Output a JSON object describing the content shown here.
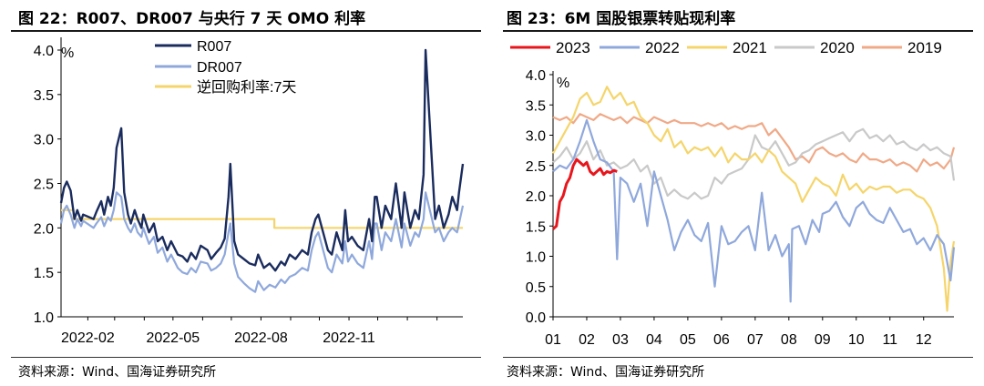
{
  "chart_data": [
    {
      "type": "line",
      "title": "图 22：R007、DR007 与央行 7 天 OMO 利率",
      "ylabel": "%",
      "ylim": [
        1.0,
        4.0
      ],
      "yticks": [
        "1.0",
        "1.5",
        "2.0",
        "2.5",
        "3.0",
        "3.5",
        "4.0"
      ],
      "xlim": [
        "2022-01-04",
        "2023-02-28"
      ],
      "xticks": [
        "2022-02",
        "2022-05",
        "2022-08",
        "2022-11"
      ],
      "legend": "top-center",
      "source": "资料来源：Wind、国海证券研究所",
      "series": [
        {
          "name": "R007",
          "color": "#1a2c5e",
          "x": [
            "2022-01-04",
            "2022-01-07",
            "2022-01-10",
            "2022-01-14",
            "2022-01-18",
            "2022-01-21",
            "2022-01-25",
            "2022-01-27",
            "2022-02-07",
            "2022-02-10",
            "2022-02-15",
            "2022-02-18",
            "2022-02-22",
            "2022-02-25",
            "2022-02-28",
            "2022-03-03",
            "2022-03-08",
            "2022-03-11",
            "2022-03-15",
            "2022-03-18",
            "2022-03-22",
            "2022-03-25",
            "2022-03-29",
            "2022-03-31",
            "2022-04-06",
            "2022-04-11",
            "2022-04-15",
            "2022-04-20",
            "2022-04-25",
            "2022-04-29",
            "2022-05-06",
            "2022-05-11",
            "2022-05-16",
            "2022-05-20",
            "2022-05-25",
            "2022-05-30",
            "2022-06-06",
            "2022-06-10",
            "2022-06-15",
            "2022-06-20",
            "2022-06-24",
            "2022-06-28",
            "2022-06-30",
            "2022-07-04",
            "2022-07-08",
            "2022-07-14",
            "2022-07-20",
            "2022-07-26",
            "2022-07-29",
            "2022-08-04",
            "2022-08-10",
            "2022-08-16",
            "2022-08-22",
            "2022-08-26",
            "2022-08-31",
            "2022-09-06",
            "2022-09-13",
            "2022-09-19",
            "2022-09-23",
            "2022-09-27",
            "2022-09-30",
            "2022-10-10",
            "2022-10-14",
            "2022-10-19",
            "2022-10-25",
            "2022-10-28",
            "2022-10-31",
            "2022-11-04",
            "2022-11-10",
            "2022-11-16",
            "2022-11-22",
            "2022-11-25",
            "2022-11-28",
            "2022-11-30",
            "2022-12-05",
            "2022-12-09",
            "2022-12-15",
            "2022-12-20",
            "2022-12-26",
            "2022-12-29",
            "2023-01-04",
            "2023-01-09",
            "2023-01-13",
            "2023-01-18",
            "2023-01-20",
            "2023-01-30",
            "2023-02-03",
            "2023-02-08",
            "2023-02-13",
            "2023-02-17",
            "2023-02-22",
            "2023-02-24",
            "2023-02-28"
          ],
          "y": [
            2.28,
            2.45,
            2.52,
            2.42,
            2.1,
            2.2,
            2.08,
            2.15,
            2.1,
            2.18,
            2.3,
            2.15,
            2.35,
            2.25,
            2.45,
            2.9,
            3.12,
            2.4,
            2.15,
            2.05,
            2.2,
            2.1,
            2.0,
            2.15,
            1.95,
            2.05,
            1.85,
            1.9,
            1.75,
            1.85,
            1.7,
            1.68,
            1.62,
            1.72,
            1.65,
            1.8,
            1.75,
            1.65,
            1.72,
            1.78,
            1.88,
            2.35,
            2.72,
            1.85,
            1.7,
            1.65,
            1.6,
            1.58,
            1.7,
            1.55,
            1.6,
            1.52,
            1.62,
            1.58,
            1.7,
            1.65,
            1.75,
            1.7,
            1.95,
            2.1,
            2.15,
            1.75,
            1.7,
            1.95,
            1.75,
            2.2,
            1.85,
            1.9,
            1.8,
            1.75,
            2.1,
            1.85,
            2.35,
            2.35,
            2.0,
            2.25,
            2.1,
            2.5,
            2.0,
            2.4,
            2.0,
            2.2,
            2.1,
            2.6,
            4.0,
            2.1,
            2.25,
            2.0,
            2.15,
            2.35,
            2.2,
            2.4,
            2.72
          ]
        },
        {
          "name": "DR007",
          "color": "#8fa8dc",
          "x": [
            "2022-01-04",
            "2022-01-07",
            "2022-01-10",
            "2022-01-14",
            "2022-01-18",
            "2022-01-21",
            "2022-01-25",
            "2022-01-27",
            "2022-02-07",
            "2022-02-10",
            "2022-02-15",
            "2022-02-18",
            "2022-02-22",
            "2022-02-25",
            "2022-02-28",
            "2022-03-03",
            "2022-03-08",
            "2022-03-11",
            "2022-03-15",
            "2022-03-18",
            "2022-03-22",
            "2022-03-25",
            "2022-03-29",
            "2022-03-31",
            "2022-04-06",
            "2022-04-11",
            "2022-04-15",
            "2022-04-20",
            "2022-04-25",
            "2022-04-29",
            "2022-05-06",
            "2022-05-11",
            "2022-05-16",
            "2022-05-20",
            "2022-05-25",
            "2022-05-30",
            "2022-06-06",
            "2022-06-10",
            "2022-06-15",
            "2022-06-20",
            "2022-06-24",
            "2022-06-28",
            "2022-06-30",
            "2022-07-04",
            "2022-07-08",
            "2022-07-14",
            "2022-07-20",
            "2022-07-26",
            "2022-07-29",
            "2022-08-04",
            "2022-08-10",
            "2022-08-16",
            "2022-08-22",
            "2022-08-26",
            "2022-08-31",
            "2022-09-06",
            "2022-09-13",
            "2022-09-19",
            "2022-09-23",
            "2022-09-27",
            "2022-09-30",
            "2022-10-10",
            "2022-10-14",
            "2022-10-19",
            "2022-10-25",
            "2022-10-28",
            "2022-10-31",
            "2022-11-04",
            "2022-11-10",
            "2022-11-16",
            "2022-11-22",
            "2022-11-25",
            "2022-11-28",
            "2022-11-30",
            "2022-12-05",
            "2022-12-09",
            "2022-12-15",
            "2022-12-20",
            "2022-12-26",
            "2022-12-29",
            "2023-01-04",
            "2023-01-09",
            "2023-01-13",
            "2023-01-18",
            "2023-01-20",
            "2023-01-30",
            "2023-02-03",
            "2023-02-08",
            "2023-02-13",
            "2023-02-17",
            "2023-02-22",
            "2023-02-24",
            "2023-02-28"
          ],
          "y": [
            2.05,
            2.2,
            2.25,
            2.15,
            2.0,
            2.1,
            2.02,
            2.08,
            2.0,
            2.05,
            2.12,
            2.02,
            2.12,
            2.08,
            2.2,
            2.4,
            2.35,
            2.1,
            2.0,
            1.95,
            2.05,
            1.95,
            1.9,
            2.0,
            1.82,
            1.9,
            1.72,
            1.78,
            1.62,
            1.7,
            1.55,
            1.5,
            1.48,
            1.55,
            1.5,
            1.62,
            1.6,
            1.52,
            1.55,
            1.6,
            1.7,
            1.95,
            2.05,
            1.6,
            1.45,
            1.38,
            1.32,
            1.28,
            1.4,
            1.3,
            1.36,
            1.33,
            1.42,
            1.38,
            1.45,
            1.48,
            1.55,
            1.52,
            1.75,
            1.9,
            1.95,
            1.55,
            1.5,
            1.7,
            1.6,
            1.85,
            1.62,
            1.7,
            1.6,
            1.55,
            1.85,
            1.65,
            2.05,
            2.05,
            1.75,
            1.95,
            1.85,
            2.1,
            1.78,
            2.05,
            1.8,
            1.95,
            1.9,
            2.1,
            2.4,
            1.95,
            2.0,
            1.85,
            1.95,
            2.0,
            1.95,
            2.05,
            2.25
          ]
        },
        {
          "name": "逆回购利率:7天",
          "color": "#f5d56b",
          "x": [
            "2022-01-04",
            "2022-01-17",
            "2022-01-17",
            "2022-08-15",
            "2022-08-15",
            "2023-02-28"
          ],
          "y": [
            2.2,
            2.2,
            2.1,
            2.1,
            2.0,
            2.0
          ]
        }
      ]
    },
    {
      "type": "line",
      "title": "图 23：6M 国股银票转贴现利率",
      "ylabel": "%",
      "ylim": [
        0.0,
        4.0
      ],
      "yticks": [
        "0.0",
        "0.5",
        "1.0",
        "1.5",
        "2.0",
        "2.5",
        "3.0",
        "3.5",
        "4.0"
      ],
      "xlim": [
        1,
        12.9
      ],
      "categories": [
        "01",
        "02",
        "03",
        "04",
        "05",
        "06",
        "07",
        "08",
        "09",
        "10",
        "11",
        "12"
      ],
      "legend": "top",
      "source": "资料来源：Wind、国海证券研究所",
      "series": [
        {
          "name": "2023",
          "color": "#e8161c",
          "x": [
            1.0,
            1.1,
            1.2,
            1.3,
            1.4,
            1.5,
            1.6,
            1.7,
            1.8,
            1.9,
            2.0,
            2.1,
            2.2,
            2.3,
            2.4,
            2.5,
            2.6,
            2.7,
            2.8,
            2.9
          ],
          "y": [
            1.45,
            1.5,
            1.9,
            2.0,
            2.2,
            2.3,
            2.5,
            2.6,
            2.55,
            2.5,
            2.55,
            2.4,
            2.35,
            2.4,
            2.45,
            2.35,
            2.4,
            2.38,
            2.42,
            2.4
          ]
        },
        {
          "name": "2022",
          "color": "#8fa8dc",
          "x": [
            1.0,
            1.2,
            1.4,
            1.6,
            1.8,
            2.0,
            2.2,
            2.4,
            2.6,
            2.8,
            2.9,
            3.0,
            3.2,
            3.4,
            3.6,
            3.8,
            4.0,
            4.2,
            4.4,
            4.6,
            4.8,
            5.0,
            5.2,
            5.4,
            5.6,
            5.8,
            6.0,
            6.2,
            6.4,
            6.6,
            6.8,
            7.0,
            7.2,
            7.4,
            7.6,
            7.8,
            8.0,
            8.05,
            8.1,
            8.3,
            8.5,
            8.7,
            8.9,
            9.0,
            9.2,
            9.4,
            9.6,
            9.8,
            10.0,
            10.2,
            10.4,
            10.6,
            10.8,
            11.0,
            11.2,
            11.4,
            11.6,
            11.8,
            12.0,
            12.2,
            12.4,
            12.6,
            12.8,
            12.9
          ],
          "y": [
            2.4,
            2.5,
            2.45,
            2.6,
            2.9,
            3.25,
            2.9,
            2.6,
            2.55,
            2.4,
            0.95,
            2.3,
            2.2,
            1.9,
            2.2,
            1.5,
            2.4,
            2.0,
            1.6,
            1.1,
            1.4,
            1.6,
            1.35,
            1.25,
            1.55,
            0.5,
            1.5,
            1.2,
            1.25,
            1.4,
            1.5,
            1.1,
            2.05,
            1.1,
            1.35,
            1.0,
            1.2,
            0.25,
            1.45,
            1.5,
            1.2,
            1.6,
            1.4,
            1.7,
            1.75,
            1.9,
            1.65,
            1.5,
            1.8,
            1.9,
            1.7,
            1.6,
            1.55,
            1.8,
            1.6,
            1.4,
            1.45,
            1.2,
            1.3,
            1.1,
            1.35,
            1.2,
            0.6,
            1.15
          ]
        },
        {
          "name": "2021",
          "color": "#f5d56b",
          "x": [
            1.0,
            1.2,
            1.4,
            1.6,
            1.8,
            2.0,
            2.2,
            2.4,
            2.6,
            2.8,
            3.0,
            3.2,
            3.4,
            3.6,
            3.8,
            4.0,
            4.2,
            4.4,
            4.6,
            4.8,
            5.0,
            5.2,
            5.4,
            5.6,
            5.8,
            6.0,
            6.2,
            6.4,
            6.6,
            6.8,
            7.0,
            7.2,
            7.4,
            7.6,
            7.8,
            8.0,
            8.2,
            8.4,
            8.6,
            8.8,
            9.0,
            9.2,
            9.4,
            9.6,
            9.8,
            10.0,
            10.2,
            10.4,
            10.6,
            10.8,
            11.0,
            11.2,
            11.4,
            11.6,
            11.8,
            12.0,
            12.2,
            12.4,
            12.6,
            12.7,
            12.8,
            12.9
          ],
          "y": [
            2.7,
            2.9,
            3.1,
            3.3,
            3.6,
            3.7,
            3.5,
            3.55,
            3.8,
            3.6,
            3.7,
            3.5,
            3.55,
            3.3,
            3.2,
            3.0,
            2.9,
            3.1,
            2.8,
            2.9,
            2.7,
            2.8,
            2.75,
            2.8,
            2.65,
            2.8,
            2.55,
            2.7,
            2.6,
            2.6,
            2.7,
            2.55,
            2.75,
            2.65,
            2.4,
            2.3,
            2.2,
            1.9,
            2.1,
            2.3,
            2.2,
            2.15,
            2.0,
            2.35,
            2.1,
            2.2,
            2.05,
            2.15,
            2.1,
            2.15,
            2.15,
            2.05,
            2.1,
            2.1,
            2.0,
            1.95,
            1.8,
            1.5,
            0.8,
            0.1,
            0.9,
            1.25
          ]
        },
        {
          "name": "2020",
          "color": "#c9c9c9",
          "x": [
            1.0,
            1.2,
            1.4,
            1.6,
            1.8,
            2.0,
            2.2,
            2.4,
            2.6,
            2.8,
            3.0,
            3.2,
            3.4,
            3.6,
            3.8,
            4.0,
            4.2,
            4.4,
            4.6,
            4.8,
            5.0,
            5.2,
            5.4,
            5.6,
            5.8,
            6.0,
            6.2,
            6.4,
            6.6,
            6.8,
            7.0,
            7.2,
            7.4,
            7.6,
            7.8,
            8.0,
            8.2,
            8.4,
            8.6,
            8.8,
            9.0,
            9.2,
            9.4,
            9.6,
            9.8,
            10.0,
            10.2,
            10.4,
            10.6,
            10.8,
            11.0,
            11.2,
            11.4,
            11.6,
            11.8,
            12.0,
            12.2,
            12.4,
            12.6,
            12.8,
            12.9
          ],
          "y": [
            2.55,
            2.65,
            2.8,
            2.6,
            2.7,
            2.9,
            2.6,
            2.75,
            2.5,
            2.55,
            2.45,
            2.5,
            2.6,
            2.4,
            2.5,
            2.2,
            2.3,
            2.0,
            2.1,
            2.0,
            1.95,
            2.05,
            1.95,
            2.0,
            2.3,
            2.2,
            2.35,
            2.4,
            2.45,
            2.6,
            3.0,
            2.8,
            2.75,
            2.9,
            2.7,
            2.5,
            2.55,
            2.7,
            2.75,
            2.85,
            2.9,
            2.95,
            3.0,
            3.05,
            2.9,
            3.05,
            3.1,
            2.95,
            3.0,
            2.9,
            3.0,
            2.85,
            2.9,
            2.8,
            2.75,
            2.85,
            2.75,
            2.8,
            2.7,
            2.65,
            2.25
          ]
        },
        {
          "name": "2019",
          "color": "#f0a987",
          "x": [
            1.0,
            1.2,
            1.4,
            1.6,
            1.8,
            2.0,
            2.2,
            2.4,
            2.6,
            2.8,
            3.0,
            3.2,
            3.4,
            3.6,
            3.8,
            4.0,
            4.2,
            4.4,
            4.6,
            4.8,
            5.0,
            5.2,
            5.4,
            5.6,
            5.8,
            6.0,
            6.2,
            6.4,
            6.6,
            6.8,
            7.0,
            7.2,
            7.4,
            7.6,
            7.8,
            8.0,
            8.2,
            8.4,
            8.6,
            8.8,
            9.0,
            9.2,
            9.4,
            9.6,
            9.8,
            10.0,
            10.2,
            10.4,
            10.6,
            10.8,
            11.0,
            11.2,
            11.4,
            11.6,
            11.8,
            12.0,
            12.2,
            12.4,
            12.6,
            12.8,
            12.9
          ],
          "y": [
            3.3,
            3.25,
            3.3,
            3.2,
            3.35,
            3.3,
            3.25,
            3.35,
            3.3,
            3.25,
            3.3,
            3.2,
            3.3,
            3.25,
            3.2,
            3.3,
            3.25,
            3.2,
            3.25,
            3.2,
            3.2,
            3.2,
            3.15,
            3.2,
            3.15,
            3.2,
            3.1,
            3.15,
            3.1,
            3.15,
            3.15,
            3.2,
            3.0,
            3.1,
            2.95,
            2.8,
            2.6,
            2.65,
            2.55,
            2.75,
            2.8,
            2.7,
            2.65,
            2.7,
            2.6,
            2.55,
            2.7,
            2.6,
            2.6,
            2.55,
            2.6,
            2.5,
            2.55,
            2.5,
            2.4,
            2.6,
            2.5,
            2.55,
            2.45,
            2.6,
            2.8
          ]
        }
      ]
    }
  ]
}
